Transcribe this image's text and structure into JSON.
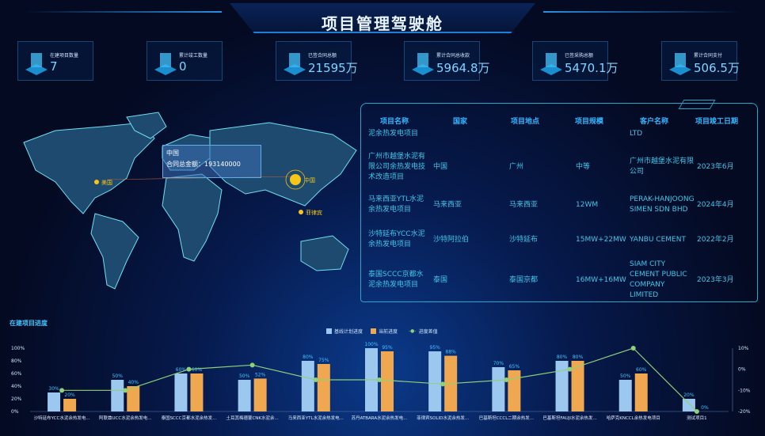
{
  "header": {
    "title": "项目管理驾驶舱"
  },
  "kpis": [
    {
      "label": "在建项目数量",
      "value": "7",
      "icon": "location-icon"
    },
    {
      "label": "累计竣工数量",
      "value": "0",
      "icon": "buildings-icon"
    },
    {
      "label": "已签合同总额",
      "value": "21595万",
      "icon": "growth-chart-icon"
    },
    {
      "label": "累计合同总收款",
      "value": "5964.8万",
      "icon": "yen-icon"
    },
    {
      "label": "已签采购总额",
      "value": "5470.1万",
      "icon": "coins-icon"
    },
    {
      "label": "累计合同支付",
      "value": "506.5万",
      "icon": "layers-icon"
    }
  ],
  "map": {
    "markers": [
      {
        "label": "美国"
      },
      {
        "label": "中国"
      },
      {
        "label": "菲律宾"
      }
    ],
    "tooltip": {
      "title": "中国",
      "line": "合同总金额：193140000"
    }
  },
  "table": {
    "headers": [
      "项目名称",
      "国家",
      "项目地点",
      "项目规模",
      "客户名称",
      "项目竣工日期"
    ],
    "rows": [
      [
        "泥余热发电项目",
        "",
        "",
        "",
        "LTD",
        ""
      ],
      [
        "广州市越堡水泥有限公司余热发电技术改造项目",
        "中国",
        "广州",
        "中等",
        "广州市越堡水泥有限公司",
        "2023年6月"
      ],
      [
        "马来西亚YTL水泥余热发电项目",
        "马来西亚",
        "马来西亚",
        "12WM",
        "PERAK-HANJOONG SIMEN SDN BHD",
        "2024年4月"
      ],
      [
        "沙特延布YCC水泥余热发电项目",
        "沙特阿拉伯",
        "沙特延布",
        "15MW+22MW",
        "YANBU CEMENT",
        "2022年2月"
      ],
      [
        "泰国SCCC京都水泥余热发电项目",
        "泰国",
        "泰国京都",
        "16MW+16MW",
        "SIAM CITY CEMENT PUBLIC COMPANY LIMITED",
        "2023年3月"
      ]
    ]
  },
  "chart_data": {
    "type": "bar",
    "title": "在建项目进度",
    "categories": [
      "沙特延布YCC水泥余热发电...",
      "阿联酋UCC水泥余热发电...",
      "泰国SCCC京都水泥余热发...",
      "土耳其梅德蒙CNK水泥余...",
      "马来西亚YTL水泥余热发电...",
      "苏丹ATBARA水泥余热发电...",
      "菲律宾SOLID水泥余热发...",
      "巴基斯坦CCCL二期余热发...",
      "巴基斯坦FAUJI水泥余热发...",
      "哈萨克KNCCL余热发电项目",
      "测试项目1"
    ],
    "series": [
      {
        "name": "基线计划进度",
        "type": "bar",
        "axis": "left",
        "color": "#9cc8f0",
        "values": [
          30,
          50,
          60,
          50,
          80,
          100,
          95,
          70,
          80,
          50,
          20
        ]
      },
      {
        "name": "当前进度",
        "type": "bar",
        "axis": "left",
        "color": "#f0a850",
        "values": [
          20,
          40,
          60,
          52,
          75,
          95,
          88,
          65,
          80,
          60,
          0
        ]
      },
      {
        "name": "进度差值",
        "type": "line",
        "axis": "right",
        "color": "#8fd07a",
        "values": [
          -10,
          -10,
          0,
          2,
          -5,
          -5,
          -7,
          -5,
          0,
          10,
          -20
        ]
      }
    ],
    "y_left": {
      "ticks": [
        "0%",
        "20%",
        "40%",
        "60%",
        "80%",
        "100%"
      ],
      "range": [
        0,
        100
      ]
    },
    "y_right": {
      "ticks": [
        "-20%",
        "-10%",
        "0%",
        "10%"
      ],
      "range": [
        -20,
        10
      ]
    },
    "legend": "top-center"
  }
}
